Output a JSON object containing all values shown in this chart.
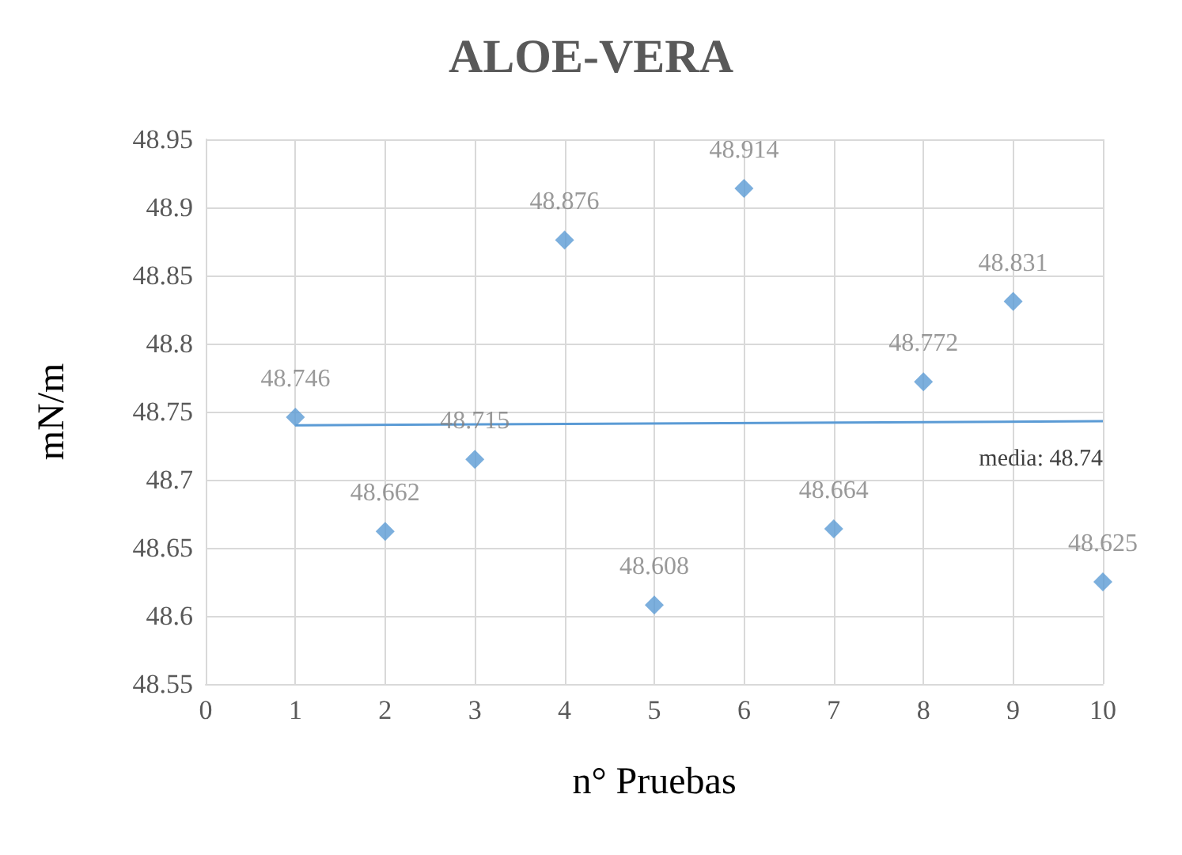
{
  "chart_data": {
    "type": "scatter",
    "title": "ALOE-VERA",
    "xlabel": "n° Pruebas",
    "ylabel": "mN/m",
    "series": [
      {
        "color": "#5b9bd5",
        "marker": "diamond",
        "x": [
          1,
          2,
          3,
          4,
          5,
          6,
          7,
          8,
          9,
          10
        ],
        "values": [
          48.746,
          48.662,
          48.715,
          48.876,
          48.608,
          48.914,
          48.664,
          48.772,
          48.831,
          48.625
        ],
        "value_labels": [
          "48.746",
          "48.662",
          "48.715",
          "48.876",
          "48.608",
          "48.914",
          "48.664",
          "48.772",
          "48.831",
          "48.625"
        ]
      },
      {
        "type": "line",
        "color": "#5b9bd5",
        "marker": "none",
        "x": [
          1,
          10
        ],
        "values": [
          48.74,
          48.743
        ]
      }
    ],
    "annotations": [
      {
        "text": "media: 48.74",
        "x": 10,
        "y": 48.74
      }
    ],
    "grid": true,
    "xlim": [
      0,
      10
    ],
    "xticks": [
      0,
      1,
      2,
      3,
      4,
      5,
      6,
      7,
      8,
      9,
      10
    ],
    "ylim": [
      48.55,
      48.95
    ],
    "yticks": [
      48.55,
      48.6,
      48.65,
      48.7,
      48.75,
      48.8,
      48.85,
      48.9,
      48.95
    ]
  }
}
